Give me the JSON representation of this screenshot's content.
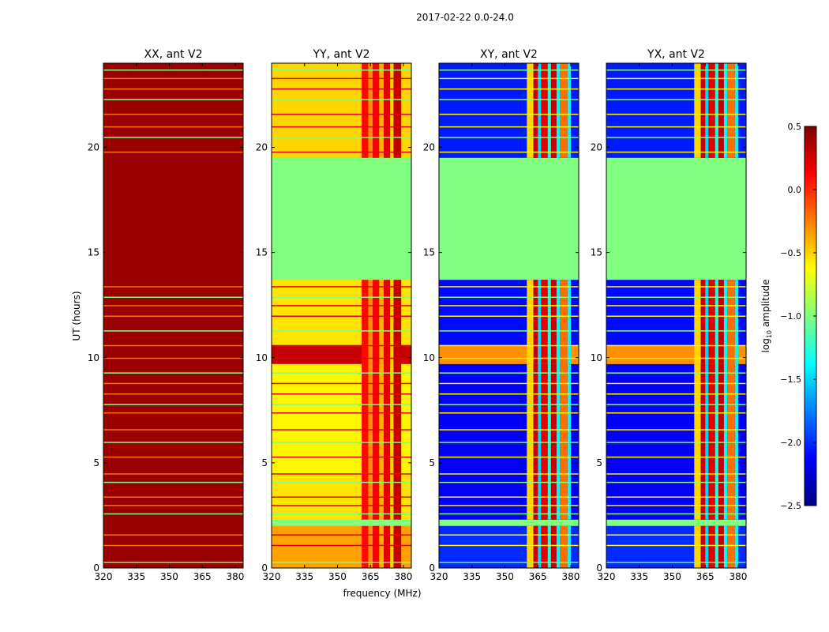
{
  "chart_data": {
    "type": "heatmap",
    "title": "2017-02-22 0.0-24.0",
    "xlabel": "frequency (MHz)",
    "ylabel": "UT (hours)",
    "xlim": [
      320,
      383.6
    ],
    "ylim": [
      0,
      24
    ],
    "xticks": [
      "320",
      "335",
      "350",
      "365",
      "380"
    ],
    "xtick_values": [
      320,
      335,
      350,
      365,
      380
    ],
    "yticks": [
      "0",
      "5",
      "10",
      "15",
      "20"
    ],
    "ytick_values": [
      0,
      5,
      10,
      15,
      20
    ],
    "colorbar": {
      "label_prefix": "log",
      "label_sub": "10",
      "label_suffix": " amplitude",
      "range": [
        -2.5,
        0.5
      ],
      "ticks": [
        "0.5",
        "0.0",
        "−0.5",
        "−1.0",
        "−1.5",
        "−2.0",
        "−2.5"
      ],
      "tick_values": [
        0.5,
        0.0,
        -0.5,
        -1.0,
        -1.5,
        -2.0,
        -2.5
      ],
      "colormap": "jet"
    },
    "flagged_value": -1.0,
    "flagged_ranges_hours": [
      [
        13.7,
        19.5
      ],
      [
        2.0,
        2.3
      ]
    ],
    "stripe_hours": [
      0.3,
      1.1,
      1.6,
      2.6,
      3.0,
      3.4,
      4.1,
      4.5,
      5.3,
      6.0,
      6.6,
      7.4,
      7.8,
      8.3,
      8.8,
      9.3,
      10.0,
      10.6,
      11.3,
      12.0,
      12.5,
      12.9,
      13.4,
      19.8,
      20.5,
      21.0,
      21.6,
      22.3,
      22.8,
      23.3,
      23.7
    ],
    "panels": [
      {
        "title": "XX, ant V2",
        "bands": [
          [
            0,
            24,
            0.42
          ]
        ],
        "rfi": [],
        "stripe_value": -0.2
      },
      {
        "title": "YY, ant V2",
        "bands": [
          [
            0,
            2.0,
            -0.35
          ],
          [
            2.3,
            4.5,
            -0.55
          ],
          [
            4.5,
            9.7,
            -0.6
          ],
          [
            9.7,
            10.6,
            0.3
          ],
          [
            10.6,
            13.7,
            -0.55
          ],
          [
            19.5,
            24,
            -0.5
          ]
        ],
        "rfi": [
          [
            361,
            364,
            0.1
          ],
          [
            364,
            366,
            -0.3
          ],
          [
            366,
            369,
            0.15
          ],
          [
            369,
            371,
            -0.4
          ],
          [
            371,
            374,
            0.2
          ],
          [
            374,
            375.5,
            -0.5
          ],
          [
            375.5,
            379,
            0.3
          ]
        ],
        "stripe_value": 0.2
      },
      {
        "title": "XY, ant V2",
        "bands": [
          [
            0,
            2.0,
            -2.0
          ],
          [
            2.3,
            9.7,
            -2.15
          ],
          [
            9.7,
            10.6,
            -0.3
          ],
          [
            10.6,
            13.7,
            -2.1
          ],
          [
            19.5,
            24,
            -2.05
          ]
        ],
        "rfi": [
          [
            360,
            363,
            -0.5
          ],
          [
            363,
            365,
            0.3
          ],
          [
            365,
            366.5,
            -1.5
          ],
          [
            366.5,
            369.5,
            0.2
          ],
          [
            369.5,
            371,
            -1.3
          ],
          [
            371,
            373.5,
            0.3
          ],
          [
            373.5,
            375,
            -1.4
          ],
          [
            375,
            378.5,
            -0.2
          ],
          [
            378.5,
            380,
            -1.4
          ]
        ],
        "stripe_value": -0.6
      },
      {
        "title": "YX, ant V2",
        "bands": [
          [
            0,
            2.0,
            -2.0
          ],
          [
            2.3,
            9.7,
            -2.15
          ],
          [
            9.7,
            10.6,
            -0.3
          ],
          [
            10.6,
            13.7,
            -2.1
          ],
          [
            19.5,
            24,
            -2.05
          ]
        ],
        "rfi": [
          [
            360,
            363,
            -0.5
          ],
          [
            363,
            365,
            0.3
          ],
          [
            365,
            366.5,
            -1.5
          ],
          [
            366.5,
            369.5,
            0.2
          ],
          [
            369.5,
            371,
            -1.3
          ],
          [
            371,
            373.5,
            0.3
          ],
          [
            373.5,
            375,
            -1.4
          ],
          [
            375,
            378.5,
            -0.2
          ],
          [
            378.5,
            380,
            -1.4
          ]
        ],
        "stripe_value": -0.6
      }
    ]
  }
}
